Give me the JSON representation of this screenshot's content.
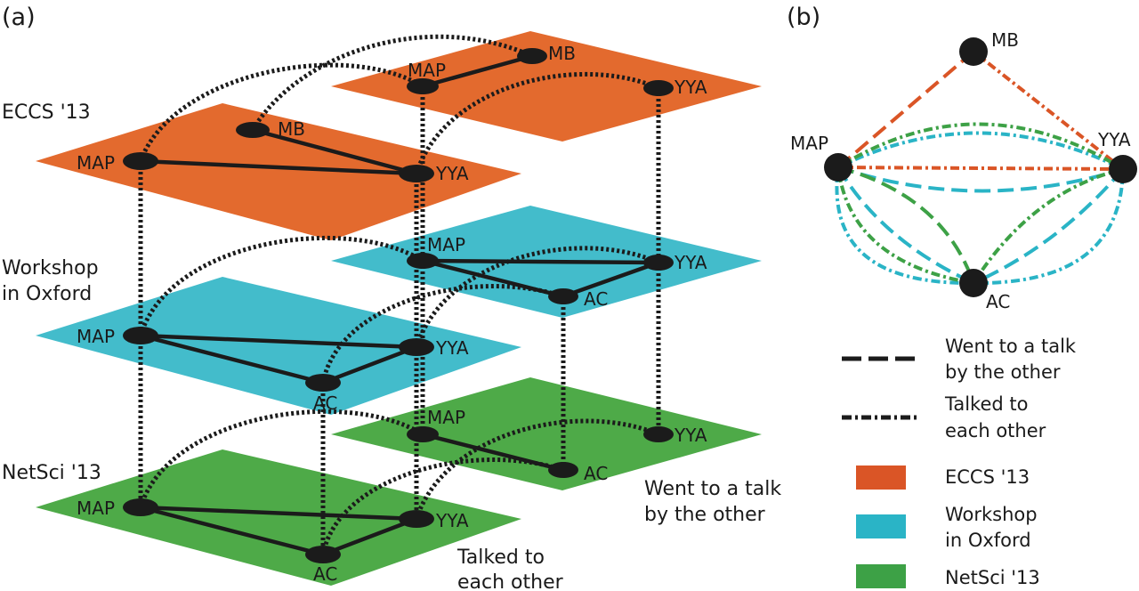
{
  "panel_a_label": "(a)",
  "panel_b_label": "(b)",
  "colors": {
    "eccs": "#E36A2E",
    "oxford": "#43BCCB",
    "netsci": "#4EAA48",
    "edge_eccs": "#DA5526",
    "edge_oxford": "#2AB4C6",
    "edge_netsci": "#3DA146",
    "node": "#1b1b1b"
  },
  "layers": {
    "eccs": {
      "label": "ECCS '13",
      "front": {
        "MAP": "MAP",
        "MB": "MB",
        "YYA": "YYA"
      },
      "back": {
        "MAP": "MAP",
        "MB": "MB",
        "YYA": "YYA"
      }
    },
    "oxford": {
      "label_line1": "Workshop",
      "label_line2": "in Oxford",
      "front": {
        "MAP": "MAP",
        "YYA": "YYA",
        "AC": "AC"
      },
      "back": {
        "MAP": "MAP",
        "YYA": "YYA",
        "AC": "AC"
      }
    },
    "netsci": {
      "label": "NetSci '13",
      "front": {
        "MAP": "MAP",
        "YYA": "YYA",
        "AC": "AC"
      },
      "back": {
        "MAP": "MAP",
        "YYA": "YYA",
        "AC": "AC"
      }
    }
  },
  "notes": {
    "went_line1": "Went to a talk",
    "went_line2": "by the other",
    "talked_line1": "Talked to",
    "talked_line2": "each other"
  },
  "aggregate": {
    "nodes": {
      "MB": "MB",
      "MAP": "MAP",
      "YYA": "YYA",
      "AC": "AC"
    }
  },
  "legend": {
    "went_line1": "Went to a talk",
    "went_line2": "by the other",
    "talked_line1": "Talked to",
    "talked_line2": "each other",
    "eccs": "ECCS '13",
    "oxford_line1": "Workshop",
    "oxford_line2": "in Oxford",
    "netsci": "NetSci '13"
  }
}
